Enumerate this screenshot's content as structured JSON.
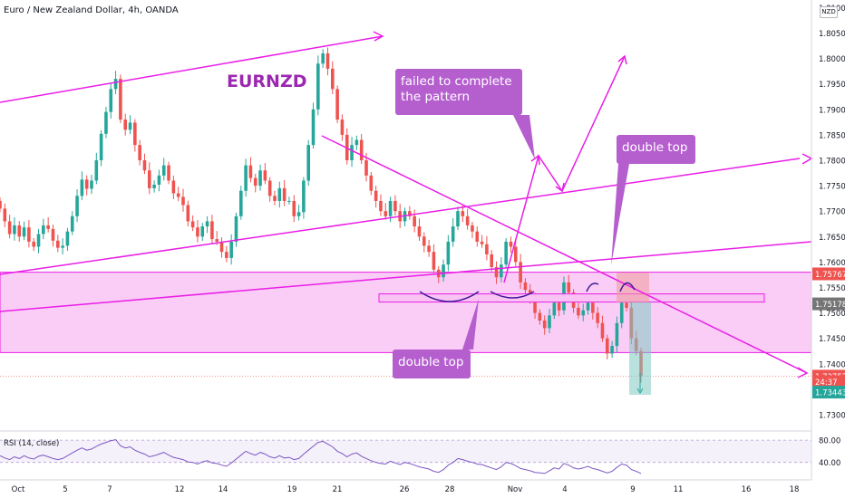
{
  "header": {
    "symbol_title": "Euro / New Zealand Dollar, 4h, OANDA",
    "currency_badge": "NZD"
  },
  "colors": {
    "up": "#26a69a",
    "down": "#ef5350",
    "drawing": "#e91ee6",
    "zone_fill": "#f9c4f4",
    "callout_fill": "#b55fcf",
    "callout_text": "#ffffff",
    "symbol_label": "#9c27b0",
    "rsi_line": "#7e57c2"
  },
  "annotations": {
    "symbol_label": "EURNZD",
    "callout_failed": [
      "failed to complete",
      "the pattern"
    ],
    "callout_double_top_right": "double top",
    "callout_double_top_bottom": "double top"
  },
  "price_axis": {
    "ticks": [
      "1.81000",
      "1.80500",
      "1.80000",
      "1.79500",
      "1.79000",
      "1.78500",
      "1.78000",
      "1.77500",
      "1.77000",
      "1.76500",
      "1.76000",
      "1.75500",
      "1.75000",
      "1.74500",
      "1.74000",
      "1.73500",
      "1.73000"
    ],
    "labels": [
      {
        "text": "1.75767",
        "color": "#ef5350"
      },
      {
        "text": "1.75178",
        "color": "#757575"
      },
      {
        "text": "1.73757",
        "color": "#ef5350"
      },
      {
        "text": "24:37",
        "color": "#ef5350"
      },
      {
        "text": "1.73443",
        "color": "#26a69a"
      }
    ]
  },
  "time_axis": {
    "ticks": [
      "Oct",
      "5",
      "7",
      "12",
      "14",
      "19",
      "21",
      "26",
      "28",
      "Nov",
      "4",
      "9",
      "11",
      "16",
      "18"
    ]
  },
  "rsi": {
    "title": "RSI (14, close)",
    "levels": [
      "80.00",
      "40.00"
    ]
  },
  "chart_data": {
    "type": "candlestick",
    "title": "Euro / New Zealand Dollar, 4h, OANDA",
    "x_ticks": [
      "Oct",
      "5",
      "7",
      "12",
      "14",
      "19",
      "21",
      "26",
      "28",
      "Nov",
      "4",
      "9",
      "11",
      "16",
      "18"
    ],
    "ylim": [
      1.7275,
      1.8115
    ],
    "closes": [
      1.7705,
      1.768,
      1.7655,
      1.7672,
      1.765,
      1.7668,
      1.764,
      1.763,
      1.7655,
      1.7672,
      1.7665,
      1.7642,
      1.7628,
      1.7632,
      1.766,
      1.769,
      1.773,
      1.7762,
      1.7744,
      1.776,
      1.78,
      1.7852,
      1.7895,
      1.794,
      1.796,
      1.788,
      1.786,
      1.7874,
      1.783,
      1.78,
      1.778,
      1.7745,
      1.7752,
      1.777,
      1.779,
      1.776,
      1.7735,
      1.7728,
      1.7712,
      1.768,
      1.7668,
      1.765,
      1.767,
      1.768,
      1.7645,
      1.764,
      1.762,
      1.7608,
      1.764,
      1.769,
      1.774,
      1.779,
      1.7765,
      1.775,
      1.778,
      1.776,
      1.773,
      1.772,
      1.7745,
      1.772,
      1.772,
      1.769,
      1.7698,
      1.776,
      1.783,
      1.79,
      1.799,
      1.801,
      1.798,
      1.794,
      1.788,
      1.785,
      1.78,
      1.783,
      1.784,
      1.78,
      1.777,
      1.774,
      1.772,
      1.77,
      1.769,
      1.772,
      1.77,
      1.768,
      1.77,
      1.769,
      1.767,
      1.765,
      1.7632,
      1.762,
      1.7585,
      1.757,
      1.7595,
      1.764,
      1.767,
      1.77,
      1.769,
      1.7672,
      1.766,
      1.764,
      1.7635,
      1.7615,
      1.759,
      1.757,
      1.7595,
      1.764,
      1.763,
      1.76,
      1.756,
      1.7545,
      1.7525,
      1.75,
      1.7485,
      1.747,
      1.7495,
      1.752,
      1.7505,
      1.756,
      1.754,
      1.751,
      1.7495,
      1.7505,
      1.752,
      1.75,
      1.748,
      1.745,
      1.742,
      1.7435,
      1.748,
      1.752,
      1.751,
      1.745,
      1.7425,
      1.7376
    ],
    "levels": {
      "resistance_zone": [
        1.7422,
        1.758
      ],
      "small_zone": [
        1.752,
        1.7532
      ],
      "last_price": 1.73757,
      "label_2": 1.75178,
      "label_4": 1.73443,
      "zone_top": 1.75767
    },
    "rsi_series": [
      52,
      48,
      45,
      50,
      47,
      52,
      48,
      46,
      51,
      53,
      50,
      47,
      45,
      47,
      52,
      57,
      62,
      66,
      62,
      64,
      69,
      73,
      76,
      79,
      81,
      70,
      66,
      68,
      62,
      58,
      55,
      50,
      52,
      55,
      58,
      53,
      49,
      47,
      45,
      41,
      40,
      37,
      41,
      43,
      39,
      38,
      35,
      33,
      39,
      46,
      53,
      60,
      56,
      53,
      58,
      55,
      50,
      48,
      52,
      48,
      49,
      45,
      47,
      55,
      62,
      69,
      76,
      78,
      73,
      68,
      60,
      56,
      50,
      55,
      57,
      51,
      47,
      43,
      40,
      38,
      37,
      42,
      39,
      36,
      40,
      38,
      35,
      32,
      30,
      28,
      24,
      22,
      27,
      35,
      40,
      47,
      45,
      42,
      40,
      37,
      36,
      33,
      30,
      27,
      32,
      40,
      38,
      34,
      29,
      27,
      25,
      22,
      21,
      20,
      25,
      30,
      28,
      38,
      35,
      30,
      28,
      30,
      33,
      29,
      27,
      24,
      21,
      24,
      31,
      37,
      35,
      27,
      24,
      20
    ],
    "rsi_ylim": [
      15,
      90
    ]
  }
}
